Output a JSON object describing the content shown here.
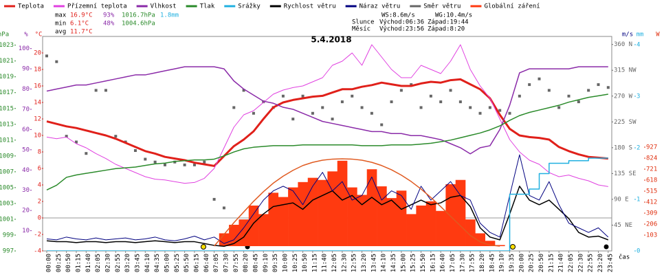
{
  "chart_data": {
    "type": "multi-axis-weather",
    "title": "5.4.2018",
    "x_label": "čas",
    "categories": [
      "00:00",
      "00:25",
      "00:50",
      "01:15",
      "01:40",
      "02:05",
      "02:30",
      "02:55",
      "03:20",
      "03:45",
      "04:10",
      "04:35",
      "05:00",
      "05:25",
      "05:50",
      "06:15",
      "06:40",
      "07:05",
      "07:30",
      "07:55",
      "08:20",
      "08:45",
      "09:10",
      "09:35",
      "10:00",
      "10:25",
      "10:50",
      "11:15",
      "11:40",
      "12:05",
      "12:30",
      "12:55",
      "13:20",
      "13:45",
      "14:10",
      "14:35",
      "15:00",
      "15:25",
      "15:50",
      "16:15",
      "16:40",
      "17:05",
      "17:30",
      "17:55",
      "18:20",
      "18:45",
      "19:10",
      "19:35",
      "20:00",
      "20:25",
      "20:50",
      "21:15",
      "21:40",
      "22:05",
      "22:30",
      "22:55",
      "23:20",
      "23:45"
    ],
    "axes": {
      "hpa": {
        "label": "hPa",
        "color": "#2a8a2a",
        "ylim": [
          997,
          1024.1
        ],
        "yticks": [
          997,
          999,
          1001,
          1003,
          1005,
          1007,
          1009,
          1011,
          1013,
          1015,
          1017,
          1019,
          1021,
          1023
        ]
      },
      "pct": {
        "label": "%",
        "color": "#8a2aa8",
        "ylim": [
          0,
          106
        ],
        "yticks": [
          10,
          20,
          30,
          40,
          50,
          60,
          70,
          80,
          90,
          100
        ]
      },
      "temp": {
        "label": "°C",
        "color": "#e0201a",
        "ylim": [
          -4,
          22
        ],
        "yticks": [
          -4,
          -2,
          0,
          2,
          4,
          6,
          8,
          10,
          12,
          14,
          16,
          18,
          20
        ]
      },
      "dir": {
        "color": "#666666",
        "ylim": [
          0,
          374
        ],
        "yticks": [
          {
            "value": 45,
            "label": "45 NE"
          },
          {
            "value": 90,
            "label": "90 E"
          },
          {
            "value": 135,
            "label": "135 SE"
          },
          {
            "value": 180,
            "label": "180 S"
          },
          {
            "value": 225,
            "label": "225 SW"
          },
          {
            "value": 270,
            "label": "270 W"
          },
          {
            "value": 315,
            "label": "315 NW"
          },
          {
            "value": 360,
            "label": "360 N"
          }
        ]
      },
      "wind": {
        "label": "m/s",
        "color": "#000080",
        "ylim": [
          0,
          23.2
        ]
      },
      "mm": {
        "label": "mm",
        "color": "#20b0e0",
        "ylim": [
          0,
          4.16
        ],
        "yticks": [
          0,
          1,
          2,
          3,
          4
        ]
      },
      "rad": {
        "label": "W",
        "color": "#e03010",
        "ylim": [
          -45,
          1964
        ],
        "yticks": [
          103,
          206,
          309,
          412,
          515,
          618,
          721,
          824,
          927
        ]
      }
    },
    "series": [
      {
        "name": "Teplota",
        "color": "#e0201a",
        "axis": "temp",
        "kind": "line",
        "width": 3,
        "values": [
          11.7,
          11.4,
          11.1,
          10.9,
          10.6,
          10.3,
          10.0,
          9.6,
          9.1,
          8.6,
          8.1,
          7.8,
          7.4,
          7.2,
          7.0,
          6.7,
          6.5,
          6.3,
          7.5,
          8.7,
          9.5,
          10.5,
          12.0,
          13.4,
          14.0,
          14.3,
          14.5,
          14.7,
          14.8,
          15.2,
          15.6,
          15.6,
          15.9,
          16.1,
          16.4,
          16.2,
          16.0,
          16.0,
          16.3,
          16.5,
          16.4,
          16.7,
          16.8,
          16.2,
          15.6,
          14.5,
          12.5,
          10.8,
          10.0,
          9.8,
          9.7,
          9.5,
          8.6,
          8.1,
          7.7,
          7.4,
          7.3,
          7.2
        ]
      },
      {
        "name": "Přízemní teplota",
        "color": "#e040e0",
        "axis": "temp",
        "kind": "line",
        "width": 1,
        "values": [
          9.8,
          9.6,
          9.8,
          9.0,
          8.5,
          7.8,
          7.2,
          6.5,
          6.0,
          5.5,
          5.0,
          4.7,
          4.6,
          4.4,
          4.2,
          4.3,
          4.8,
          6.0,
          8.5,
          11.0,
          12.5,
          13.0,
          14.0,
          15.0,
          15.5,
          15.8,
          16.0,
          16.5,
          17.0,
          18.5,
          19.0,
          20.0,
          18.5,
          21.0,
          19.5,
          18.0,
          17.0,
          17.0,
          18.5,
          18.0,
          17.5,
          19.0,
          21.0,
          18.0,
          16.0,
          14.5,
          12.0,
          9.5,
          8.0,
          7.0,
          6.5,
          5.5,
          5.0,
          5.2,
          4.8,
          4.5,
          4.0,
          3.8
        ]
      },
      {
        "name": "Vlhkost",
        "color": "#8a2aa8",
        "axis": "pct",
        "kind": "line",
        "width": 1.5,
        "values": [
          79,
          80,
          81,
          82,
          82,
          83,
          84,
          85,
          86,
          87,
          87,
          88,
          89,
          90,
          91,
          91,
          91,
          91,
          90,
          84,
          80,
          77,
          74,
          73,
          71,
          70,
          68,
          66,
          64,
          63,
          62,
          61,
          60,
          59,
          59,
          58,
          58,
          57,
          57,
          56,
          55,
          53,
          51,
          48,
          51,
          52,
          60,
          72,
          88,
          90,
          90,
          90,
          90,
          90,
          91,
          91,
          91,
          91
        ]
      },
      {
        "name": "Tlak",
        "color": "#2a8a2a",
        "axis": "hpa",
        "kind": "line",
        "width": 1.5,
        "values": [
          1004.7,
          1005.3,
          1006.3,
          1006.6,
          1006.8,
          1007.0,
          1007.2,
          1007.4,
          1007.5,
          1007.6,
          1007.8,
          1008.0,
          1008.1,
          1008.3,
          1008.4,
          1008.5,
          1008.5,
          1008.6,
          1009.0,
          1009.5,
          1009.9,
          1010.1,
          1010.2,
          1010.3,
          1010.3,
          1010.3,
          1010.4,
          1010.4,
          1010.4,
          1010.4,
          1010.4,
          1010.4,
          1010.3,
          1010.3,
          1010.3,
          1010.4,
          1010.4,
          1010.4,
          1010.5,
          1010.6,
          1010.8,
          1011.0,
          1011.3,
          1011.6,
          1011.9,
          1012.3,
          1012.8,
          1013.5,
          1014.1,
          1014.5,
          1014.8,
          1015.1,
          1015.4,
          1015.8,
          1016.1,
          1016.4,
          1016.6,
          1016.8
        ]
      },
      {
        "name": "Srážky",
        "color": "#20b0e0",
        "axis": "mm",
        "kind": "step",
        "width": 1.5,
        "values": [
          0,
          0,
          0,
          0,
          0,
          0,
          0,
          0,
          0,
          0,
          0,
          0,
          0,
          0,
          0,
          0,
          0,
          0,
          0,
          0,
          0,
          0,
          0,
          0,
          0,
          0,
          0,
          0,
          0,
          0,
          0,
          0,
          0,
          0,
          0,
          0,
          0,
          0,
          0,
          0,
          0,
          0,
          0,
          0,
          0,
          0,
          0,
          0,
          1.1,
          1.1,
          1.2,
          1.5,
          1.7,
          1.7,
          1.75,
          1.75,
          1.8,
          1.8
        ]
      },
      {
        "name": "Rychlost větru",
        "color": "#000000",
        "axis": "wind",
        "kind": "line",
        "width": 1.5,
        "values": [
          1.1,
          1.0,
          1.0,
          0.9,
          1.0,
          1.0,
          0.9,
          1.0,
          1.0,
          0.9,
          1.0,
          1.1,
          1.0,
          0.9,
          1.0,
          1.0,
          0.8,
          0.6,
          0.5,
          0.8,
          1.5,
          3.0,
          4.0,
          4.8,
          5.0,
          5.2,
          4.5,
          5.5,
          6.0,
          6.5,
          5.5,
          6.0,
          5.0,
          5.8,
          5.0,
          5.5,
          4.5,
          5.0,
          5.5,
          5.0,
          5.2,
          5.8,
          6.0,
          4.8,
          2.5,
          1.5,
          1.2,
          4.0,
          7.0,
          5.5,
          5.0,
          5.5,
          4.5,
          3.5,
          2.0,
          1.5,
          1.6,
          1.2
        ]
      },
      {
        "name": "Náraz větru",
        "color": "#000080",
        "axis": "wind",
        "kind": "line",
        "width": 1,
        "values": [
          1.3,
          1.2,
          1.5,
          1.3,
          1.2,
          1.4,
          1.2,
          1.3,
          1.4,
          1.2,
          1.3,
          1.5,
          1.2,
          1.1,
          1.3,
          1.6,
          1.2,
          1.5,
          0.8,
          1.2,
          2.5,
          4.0,
          5.5,
          6.5,
          7.0,
          6.5,
          5.0,
          7.0,
          8.5,
          6.5,
          7.5,
          5.5,
          6.0,
          8.0,
          5.5,
          6.5,
          6.0,
          4.5,
          7.0,
          5.5,
          6.5,
          7.5,
          6.0,
          5.5,
          3.0,
          2.0,
          1.5,
          6.0,
          10.4,
          6.0,
          5.5,
          7.5,
          5.0,
          3.0,
          2.5,
          2.0,
          2.5,
          1.5
        ]
      },
      {
        "name": "Směr větru",
        "color": "#666666",
        "axis": "dir",
        "kind": "scatter",
        "values": [
          340,
          330,
          200,
          190,
          170,
          280,
          280,
          200,
          190,
          175,
          160,
          155,
          150,
          155,
          150,
          150,
          155,
          90,
          75,
          250,
          280,
          240,
          260,
          250,
          270,
          230,
          270,
          240,
          250,
          230,
          260,
          270,
          250,
          240,
          220,
          260,
          280,
          290,
          250,
          270,
          260,
          280,
          260,
          250,
          240,
          250,
          245,
          240,
          270,
          290,
          300,
          280,
          250,
          270,
          260,
          280,
          290,
          285
        ]
      },
      {
        "name": "Globální záření",
        "color": "#ff3a10",
        "axis": "rad",
        "kind": "bars",
        "values": [
          0,
          0,
          0,
          0,
          0,
          0,
          0,
          0,
          0,
          0,
          0,
          0,
          0,
          0,
          0,
          0,
          0,
          0,
          120,
          200,
          250,
          380,
          300,
          500,
          460,
          550,
          600,
          640,
          620,
          700,
          800,
          550,
          480,
          720,
          560,
          450,
          520,
          300,
          380,
          420,
          330,
          580,
          620,
          250,
          120,
          50,
          10,
          0,
          0,
          0,
          0,
          0,
          0,
          0,
          0,
          0,
          0,
          0
        ]
      },
      {
        "color": "#e05a20",
        "axis": "rad",
        "kind": "line",
        "width": 1.5,
        "values": [
          null,
          null,
          null,
          null,
          null,
          null,
          null,
          null,
          null,
          null,
          null,
          null,
          null,
          null,
          null,
          null,
          null,
          0,
          110,
          220,
          320,
          420,
          510,
          590,
          655,
          710,
          755,
          785,
          805,
          815,
          818,
          815,
          805,
          785,
          755,
          715,
          665,
          605,
          535,
          455,
          370,
          280,
          190,
          100,
          40,
          10,
          0,
          null,
          null,
          null,
          null,
          null,
          null,
          null,
          null,
          null,
          null,
          null
        ]
      }
    ],
    "stats": [
      [
        "max",
        "16.9°C",
        "93%",
        "1016.7hPa",
        "1.8mm"
      ],
      [
        "min",
        "6.1°C",
        "48%",
        "1004.6hPa"
      ],
      [
        "avg",
        "11.7°C"
      ]
    ],
    "astro": [
      [
        "WS:8.6m/s",
        "WG:10.4m/s"
      ],
      [
        "Slunce",
        "Východ:06:36",
        "Západ:19:44"
      ],
      [
        "Měsíc",
        "Východ:23:56",
        "Západ:8:20"
      ]
    ]
  }
}
